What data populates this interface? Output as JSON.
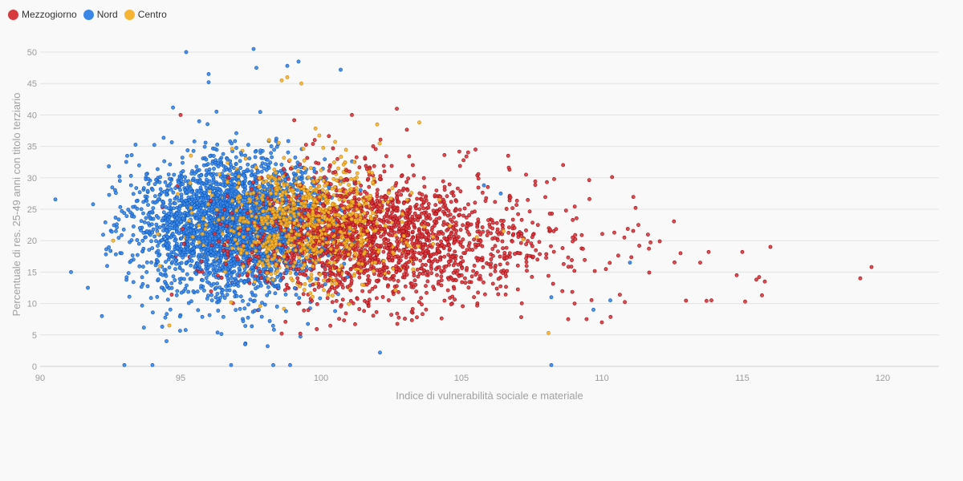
{
  "chart_data": {
    "type": "scatter",
    "title": "",
    "xlabel": "Indice di vulnerabilità sociale e materiale",
    "ylabel": "Percentuale di res. 25-49 anni con titolo terziario",
    "xlim": [
      90,
      122
    ],
    "ylim": [
      0,
      52
    ],
    "xticks": [
      "90",
      "95",
      "100",
      "105",
      "110",
      "115",
      "120"
    ],
    "yticks": [
      "0",
      "5",
      "10",
      "15",
      "20",
      "25",
      "30",
      "35",
      "40",
      "45",
      "50"
    ],
    "grid": true,
    "legend_position": "top-left",
    "series": [
      {
        "name": "Mezzogiorno",
        "color": "#d63a3f",
        "clusters": [
          {
            "cx": 101.2,
            "cy": 21,
            "sx": 2.2,
            "sy": 5.2,
            "n": 1500
          },
          {
            "cx": 104.5,
            "cy": 19.5,
            "sx": 2.3,
            "sy": 4.5,
            "n": 420
          },
          {
            "cx": 108.5,
            "cy": 17.5,
            "sx": 2.5,
            "sy": 4.0,
            "n": 70
          }
        ],
        "points": [
          {
            "x": 112.8,
            "y": 18.0
          },
          {
            "x": 113.5,
            "y": 16.5
          },
          {
            "x": 113.8,
            "y": 18.2
          },
          {
            "x": 113.9,
            "y": 10.5
          },
          {
            "x": 114.8,
            "y": 14.5
          },
          {
            "x": 115.0,
            "y": 18.2
          },
          {
            "x": 115.1,
            "y": 10.3
          },
          {
            "x": 115.5,
            "y": 13.8
          },
          {
            "x": 115.6,
            "y": 14.2
          },
          {
            "x": 115.7,
            "y": 11.3
          },
          {
            "x": 115.8,
            "y": 13.5
          },
          {
            "x": 116.0,
            "y": 19.0
          },
          {
            "x": 119.2,
            "y": 14.0
          },
          {
            "x": 119.6,
            "y": 15.8
          },
          {
            "x": 110.0,
            "y": 7.0
          },
          {
            "x": 108.3,
            "y": 29.8
          },
          {
            "x": 107.3,
            "y": 30.5
          },
          {
            "x": 105.5,
            "y": 34.5
          },
          {
            "x": 102.7,
            "y": 41.0
          },
          {
            "x": 101.1,
            "y": 40.0
          },
          {
            "x": 95.0,
            "y": 40.0
          },
          {
            "x": 108.8,
            "y": 7.5
          },
          {
            "x": 111.3,
            "y": 22.5
          },
          {
            "x": 110.8,
            "y": 20.5
          },
          {
            "x": 98.6,
            "y": 5.2
          }
        ]
      },
      {
        "name": "Nord",
        "color": "#3b87e8",
        "clusters": [
          {
            "cx": 97.0,
            "cy": 22.5,
            "sx": 1.5,
            "sy": 5.5,
            "n": 2400
          },
          {
            "cx": 95.0,
            "cy": 21.5,
            "sx": 1.3,
            "sy": 5.5,
            "n": 300
          }
        ],
        "points": [
          {
            "x": 91.1,
            "y": 15.0
          },
          {
            "x": 91.7,
            "y": 12.5
          },
          {
            "x": 92.2,
            "y": 8.0
          },
          {
            "x": 92.7,
            "y": 21.5
          },
          {
            "x": 92.9,
            "y": 18.0
          },
          {
            "x": 93.0,
            "y": 0.2
          },
          {
            "x": 93.1,
            "y": 33.5
          },
          {
            "x": 94.0,
            "y": 0.2
          },
          {
            "x": 95.2,
            "y": 50.0
          },
          {
            "x": 96.0,
            "y": 46.5
          },
          {
            "x": 96.0,
            "y": 45.2
          },
          {
            "x": 96.8,
            "y": 0.2
          },
          {
            "x": 97.6,
            "y": 50.5
          },
          {
            "x": 97.7,
            "y": 47.5
          },
          {
            "x": 98.8,
            "y": 47.8
          },
          {
            "x": 99.2,
            "y": 48.5
          },
          {
            "x": 98.3,
            "y": 0.2
          },
          {
            "x": 98.9,
            "y": 0.2
          },
          {
            "x": 100.7,
            "y": 47.2
          },
          {
            "x": 102.1,
            "y": 2.2
          },
          {
            "x": 108.2,
            "y": 0.2
          },
          {
            "x": 108.2,
            "y": 11.0
          },
          {
            "x": 109.7,
            "y": 9.0
          },
          {
            "x": 110.3,
            "y": 10.5
          },
          {
            "x": 111.0,
            "y": 16.5
          },
          {
            "x": 106.4,
            "y": 27.5
          },
          {
            "x": 105.8,
            "y": 28.8
          },
          {
            "x": 97.3,
            "y": 3.5
          },
          {
            "x": 98.1,
            "y": 3.2
          },
          {
            "x": 94.5,
            "y": 4.0
          }
        ]
      },
      {
        "name": "Centro",
        "color": "#f7b433",
        "clusters": [
          {
            "cx": 99.5,
            "cy": 23.0,
            "sx": 1.6,
            "sy": 4.5,
            "n": 950
          }
        ],
        "points": [
          {
            "x": 98.6,
            "y": 45.5
          },
          {
            "x": 98.8,
            "y": 46.0
          },
          {
            "x": 99.3,
            "y": 45.0
          },
          {
            "x": 103.5,
            "y": 38.8
          },
          {
            "x": 102.0,
            "y": 38.5
          },
          {
            "x": 94.6,
            "y": 6.5
          },
          {
            "x": 108.1,
            "y": 5.3
          },
          {
            "x": 107.2,
            "y": 20.2
          },
          {
            "x": 106.5,
            "y": 21.5
          },
          {
            "x": 104.2,
            "y": 26.5
          },
          {
            "x": 92.6,
            "y": 20.0
          },
          {
            "x": 96.8,
            "y": 10.2
          }
        ]
      }
    ]
  }
}
